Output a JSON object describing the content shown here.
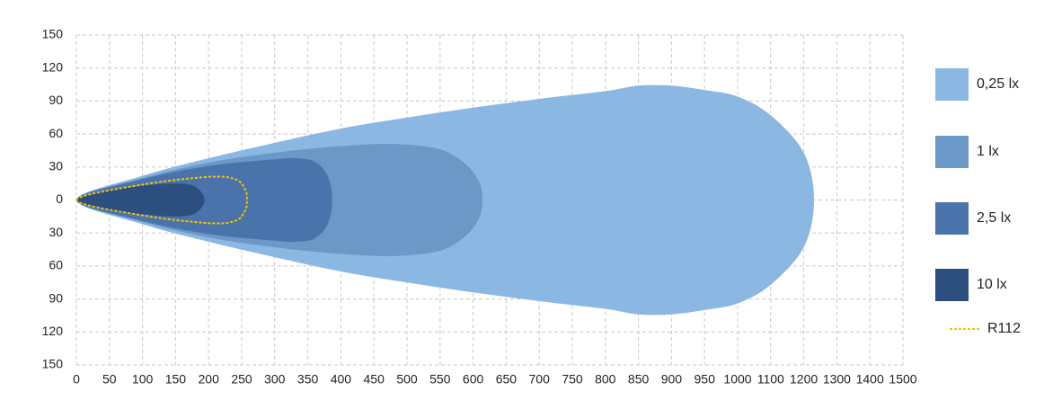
{
  "chart_data": {
    "type": "area",
    "xlim": [
      0,
      1500
    ],
    "ylim": [
      -150,
      150
    ],
    "xticks": [
      0,
      50,
      100,
      150,
      200,
      250,
      300,
      350,
      400,
      450,
      500,
      550,
      600,
      650,
      700,
      750,
      800,
      850,
      900,
      950,
      1000,
      1100,
      1200,
      1300,
      1400,
      1500
    ],
    "yticks": [
      150,
      120,
      90,
      60,
      30,
      0,
      {
        "value": -30,
        "label": "30"
      },
      {
        "value": -60,
        "label": "60"
      },
      {
        "value": -90,
        "label": "90"
      },
      {
        "value": -120,
        "label": "120"
      },
      {
        "value": -150,
        "label": "150"
      }
    ],
    "grid": true,
    "legend": "right",
    "series": [
      {
        "name": "0,25 lx",
        "color": "#8ab8e2",
        "x": [
          0,
          100,
          200,
          300,
          400,
          500,
          600,
          700,
          800,
          850,
          900,
          950,
          1000,
          1100,
          1200,
          1231,
          1200,
          1100,
          1000,
          950,
          900,
          850,
          800,
          700,
          600,
          500,
          400,
          300,
          200,
          100
        ],
        "values": [
          0,
          22,
          38,
          52,
          65,
          75,
          84,
          92,
          99,
          104,
          104,
          100,
          94,
          77,
          43,
          0,
          -43,
          -77,
          -94,
          -100,
          -104,
          -104,
          -99,
          -92,
          -84,
          -75,
          -65,
          -52,
          -38,
          -22
        ]
      },
      {
        "name": "1 lx",
        "color": "#6c98c8",
        "x": [
          0,
          100,
          200,
          300,
          400,
          480,
          550,
          590,
          610,
          614,
          610,
          590,
          550,
          480,
          400,
          300,
          200,
          100
        ],
        "values": [
          0,
          20,
          34,
          43,
          49,
          51,
          46,
          32,
          15,
          0,
          -15,
          -32,
          -46,
          -51,
          -49,
          -43,
          -34,
          -20
        ]
      },
      {
        "name": "2,5 lx",
        "color": "#4a73ab",
        "x": [
          0,
          100,
          200,
          300,
          330,
          360,
          380,
          387,
          380,
          360,
          330,
          300,
          200,
          100
        ],
        "values": [
          0,
          19,
          31,
          37,
          38,
          35,
          22,
          0,
          -22,
          -35,
          -38,
          -37,
          -31,
          -19
        ]
      },
      {
        "name": "10 lx",
        "color": "#2d4f80",
        "x": [
          0,
          50,
          100,
          150,
          180,
          194,
          180,
          150,
          100,
          50
        ],
        "values": [
          0,
          9,
          13,
          15,
          12,
          0,
          -12,
          -15,
          -13,
          -9
        ]
      },
      {
        "name": "R112",
        "color": "#f5c400",
        "line_style": "dotted",
        "x": [
          0,
          100,
          200,
          240,
          255,
          258,
          255,
          240,
          200,
          100
        ],
        "values": [
          0,
          14,
          21,
          19,
          10,
          0,
          -10,
          -19,
          -21,
          -14
        ]
      }
    ]
  }
}
